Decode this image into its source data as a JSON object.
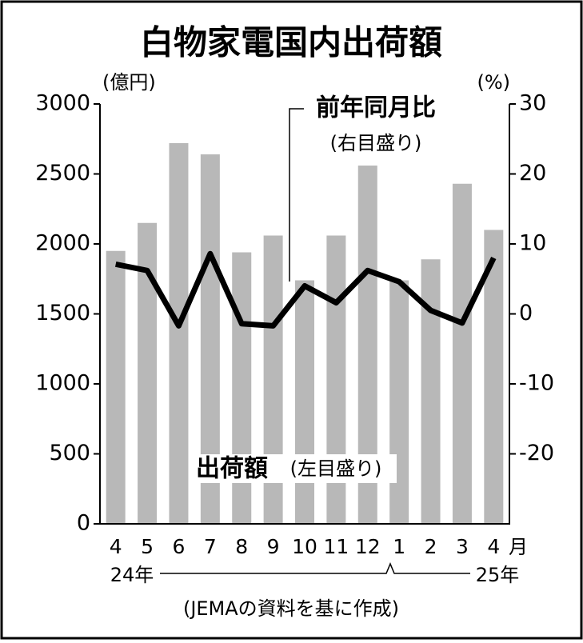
{
  "chart_data": {
    "type": "bar-line",
    "title": "白物家電国内出荷額",
    "y_unit": "(億円)",
    "y2_unit": "(%)",
    "categories": [
      "4",
      "5",
      "6",
      "7",
      "8",
      "9",
      "10",
      "11",
      "12",
      "1",
      "2",
      "3",
      "4"
    ],
    "x_unit": "月",
    "year_labels": [
      "24年",
      "25年"
    ],
    "series": [
      {
        "name": "出荷額",
        "type": "bar",
        "color": "#b8b8b8",
        "axis_note": "(左目盛り)",
        "values": [
          1950,
          2150,
          2720,
          2640,
          1940,
          2060,
          1740,
          2060,
          2560,
          1740,
          1890,
          2430,
          2100
        ]
      },
      {
        "name": "前年同月比",
        "type": "line",
        "axis": "y2",
        "color": "#000000",
        "axis_note": "(右目盛り)",
        "values": [
          7.1,
          6.2,
          -1.7,
          8.6,
          -1.4,
          -1.7,
          4.0,
          1.6,
          6.2,
          4.6,
          0.5,
          -1.3,
          8.0
        ]
      }
    ],
    "ylim": [
      0,
      3000
    ],
    "yticks": [
      0,
      500,
      1000,
      1500,
      2000,
      2500,
      3000
    ],
    "y2lim": [
      -30,
      30
    ],
    "y2ticks": [
      -20,
      -10,
      0,
      10,
      20,
      30
    ],
    "source": "(JEMAの資料を基に作成)"
  }
}
